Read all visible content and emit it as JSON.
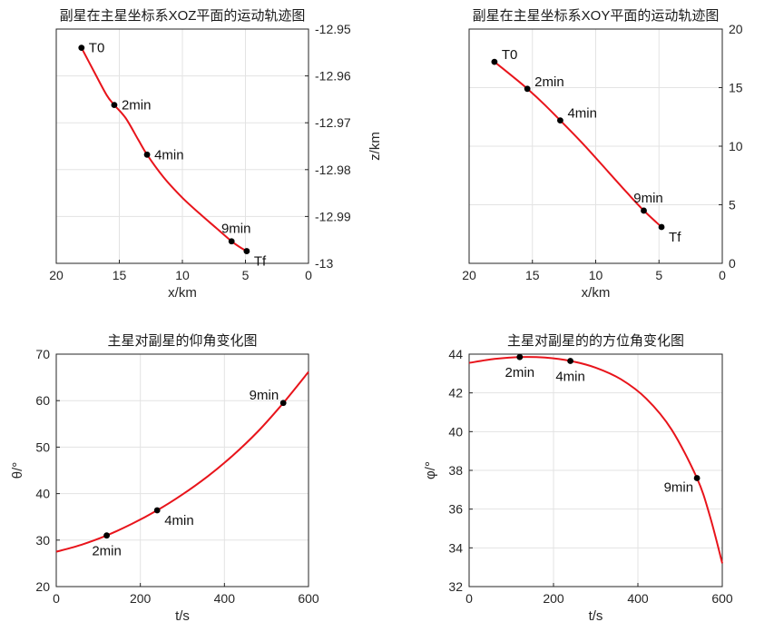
{
  "chart_data": [
    {
      "type": "line",
      "title": "副星在主星坐标系XOZ平面的运动轨迹图",
      "xlabel": "x/km",
      "ylabel": "z/km",
      "y_axis_side": "right",
      "x_reversed": true,
      "grid": true,
      "xlim": [
        0,
        20
      ],
      "ylim": [
        -13,
        -12.95
      ],
      "xticks": [
        20,
        15,
        10,
        5,
        0
      ],
      "xtick_labels": [
        "20",
        "15",
        "10",
        "5",
        "0"
      ],
      "yticks": [
        -12.95,
        -12.96,
        -12.97,
        -12.98,
        -12.99,
        -13
      ],
      "ytick_labels": [
        "-12.95",
        "-12.96",
        "-12.97",
        "-12.98",
        "-12.99",
        "-13"
      ],
      "line_color": "#e8141b",
      "series": [
        {
          "x": [
            18.0,
            17.0,
            16.0,
            15.4,
            14.5,
            13.5,
            12.8,
            11.5,
            10.0,
            8.5,
            7.3,
            6.1,
            5.4,
            4.9
          ],
          "y": [
            -12.954,
            -12.9591,
            -12.9641,
            -12.9662,
            -12.969,
            -12.9736,
            -12.9768,
            -12.9816,
            -12.986,
            -12.9897,
            -12.9925,
            -12.9953,
            -12.9966,
            -12.9974
          ]
        }
      ],
      "markers": [
        {
          "label": "T0",
          "x": 18.0,
          "y": -12.954,
          "pos": "right"
        },
        {
          "label": "2min",
          "x": 15.4,
          "y": -12.9662,
          "pos": "right"
        },
        {
          "label": "4min",
          "x": 12.8,
          "y": -12.9768,
          "pos": "right"
        },
        {
          "label": "9min",
          "x": 6.1,
          "y": -12.9953,
          "pos": "above"
        },
        {
          "label": "Tf",
          "x": 4.9,
          "y": -12.9974,
          "pos": "right-below"
        }
      ]
    },
    {
      "type": "line",
      "title": "副星在主星坐标系XOY平面的运动轨迹图",
      "xlabel": "x/km",
      "ylabel": "y/km",
      "y_axis_side": "right",
      "x_reversed": true,
      "grid": true,
      "xlim": [
        0,
        20
      ],
      "ylim": [
        0,
        20
      ],
      "xticks": [
        20,
        15,
        10,
        5,
        0
      ],
      "xtick_labels": [
        "20",
        "15",
        "10",
        "5",
        "0"
      ],
      "yticks": [
        0,
        5,
        10,
        15,
        20
      ],
      "ytick_labels": [
        "0",
        "5",
        "10",
        "15",
        "20"
      ],
      "line_color": "#e8141b",
      "series": [
        {
          "x": [
            18.0,
            16.5,
            15.4,
            14.0,
            12.8,
            11.0,
            9.0,
            7.5,
            6.2,
            4.8
          ],
          "y": [
            17.2,
            15.9,
            14.9,
            13.5,
            12.2,
            10.2,
            7.8,
            6.0,
            4.5,
            3.1
          ]
        }
      ],
      "markers": [
        {
          "label": "T0",
          "x": 18.0,
          "y": 17.2,
          "pos": "right-above"
        },
        {
          "label": "2min",
          "x": 15.4,
          "y": 14.9,
          "pos": "right-above"
        },
        {
          "label": "4min",
          "x": 12.8,
          "y": 12.2,
          "pos": "right-above"
        },
        {
          "label": "9min",
          "x": 6.2,
          "y": 4.5,
          "pos": "above"
        },
        {
          "label": "Tf",
          "x": 4.8,
          "y": 3.1,
          "pos": "right-below"
        }
      ]
    },
    {
      "type": "line",
      "title": "主星对副星的仰角变化图",
      "xlabel": "t/s",
      "ylabel": "θ/°",
      "y_axis_side": "left",
      "x_reversed": false,
      "grid": true,
      "xlim": [
        0,
        600
      ],
      "ylim": [
        20,
        70
      ],
      "xticks": [
        0,
        200,
        400,
        600
      ],
      "xtick_labels": [
        "0",
        "200",
        "400",
        "600"
      ],
      "yticks": [
        20,
        30,
        40,
        50,
        60,
        70
      ],
      "ytick_labels": [
        "20",
        "30",
        "40",
        "50",
        "60",
        "70"
      ],
      "line_color": "#e8141b",
      "series": [
        {
          "x": [
            0,
            60,
            120,
            180,
            240,
            300,
            360,
            420,
            480,
            540,
            600
          ],
          "y": [
            27.5,
            29.0,
            31.0,
            33.5,
            36.4,
            39.8,
            43.7,
            48.2,
            53.4,
            59.5,
            66.2
          ]
        }
      ],
      "markers": [
        {
          "label": "2min",
          "x": 120,
          "y": 31.0,
          "pos": "below"
        },
        {
          "label": "4min",
          "x": 240,
          "y": 36.4,
          "pos": "right-below"
        },
        {
          "label": "9min",
          "x": 540,
          "y": 59.5,
          "pos": "left-above"
        }
      ]
    },
    {
      "type": "line",
      "title": "主星对副星的的方位角变化图",
      "xlabel": "t/s",
      "ylabel": "φ/°",
      "y_axis_side": "left",
      "x_reversed": false,
      "grid": true,
      "xlim": [
        0,
        600
      ],
      "ylim": [
        32,
        44
      ],
      "xticks": [
        0,
        200,
        400,
        600
      ],
      "xtick_labels": [
        "0",
        "200",
        "400",
        "600"
      ],
      "yticks": [
        32,
        34,
        36,
        38,
        40,
        42,
        44
      ],
      "ytick_labels": [
        "32",
        "34",
        "36",
        "38",
        "40",
        "42",
        "44"
      ],
      "line_color": "#e8141b",
      "series": [
        {
          "x": [
            0,
            60,
            120,
            180,
            240,
            300,
            360,
            420,
            480,
            540,
            570,
            600
          ],
          "y": [
            43.55,
            43.75,
            43.85,
            43.82,
            43.65,
            43.3,
            42.7,
            41.7,
            40.1,
            37.6,
            35.7,
            33.2
          ]
        }
      ],
      "markers": [
        {
          "label": "2min",
          "x": 120,
          "y": 43.85,
          "pos": "below"
        },
        {
          "label": "4min",
          "x": 240,
          "y": 43.65,
          "pos": "below"
        },
        {
          "label": "9min",
          "x": 540,
          "y": 37.6,
          "pos": "left-below"
        }
      ]
    }
  ]
}
